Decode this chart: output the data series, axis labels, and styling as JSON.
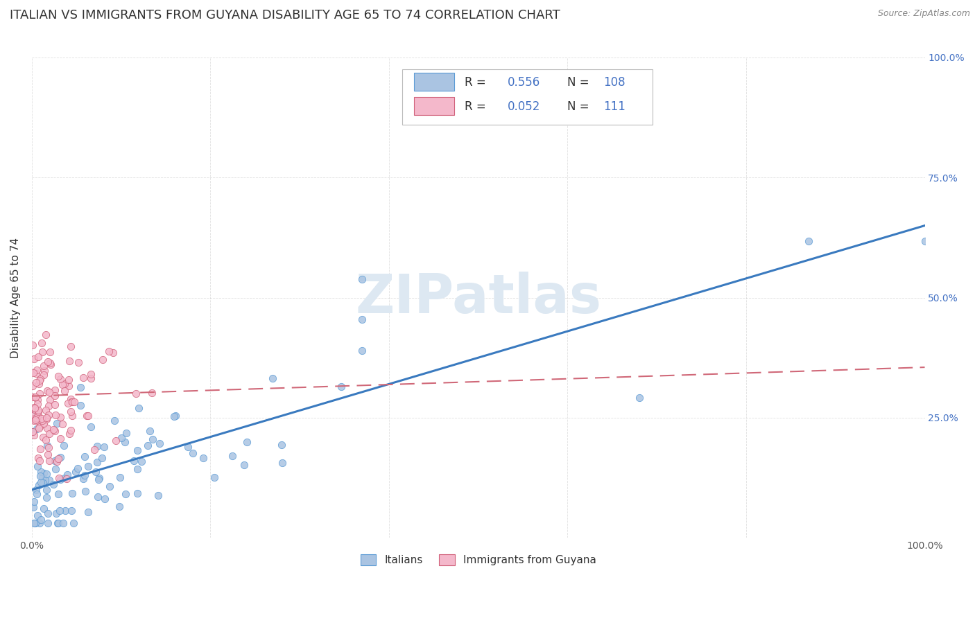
{
  "title": "ITALIAN VS IMMIGRANTS FROM GUYANA DISABILITY AGE 65 TO 74 CORRELATION CHART",
  "source": "Source: ZipAtlas.com",
  "ylabel": "Disability Age 65 to 74",
  "xlim": [
    0,
    1
  ],
  "ylim": [
    0,
    1
  ],
  "italian_color": "#aac4e2",
  "italian_edge_color": "#5b9bd5",
  "guyana_color": "#f4b8cb",
  "guyana_edge_color": "#d0607a",
  "italian_line_color": "#3a7abf",
  "guyana_line_color": "#d06878",
  "legend_R_italian": "0.556",
  "legend_N_italian": "108",
  "legend_R_guyana": "0.052",
  "legend_N_guyana": "111",
  "watermark": "ZIPatlas",
  "background_color": "#ffffff",
  "grid_color": "#cccccc",
  "title_fontsize": 13,
  "axis_label_fontsize": 11,
  "tick_fontsize": 10,
  "value_color": "#4472c4",
  "italian_line_y0": 0.1,
  "italian_line_y1": 0.65,
  "guyana_line_y0": 0.295,
  "guyana_line_y1": 0.355
}
